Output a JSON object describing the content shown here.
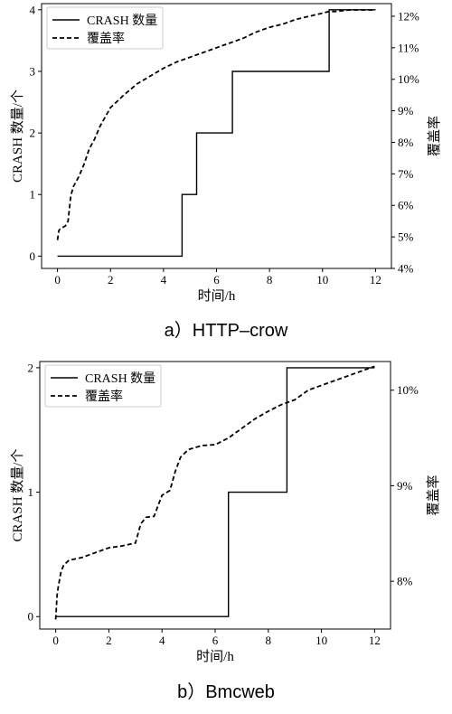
{
  "chart_data": [
    {
      "type": "line",
      "caption": "a）HTTP–crow",
      "xlabel": "时间/h",
      "ylabel": "CRASH 数量/个",
      "ylabel_right": "覆盖率",
      "xlim": [
        -0.6,
        12.6
      ],
      "ylim": [
        -0.2,
        4.1
      ],
      "ylim_right": [
        4.0,
        12.4
      ],
      "xticks": [
        0,
        2,
        4,
        6,
        8,
        10,
        12
      ],
      "yticks": [
        0,
        1,
        2,
        3,
        4
      ],
      "yticks_right": [
        4,
        5,
        6,
        7,
        8,
        9,
        10,
        11,
        12
      ],
      "yticks_right_labels": [
        "4%",
        "5%",
        "6%",
        "7%",
        "8%",
        "9%",
        "10%",
        "11%",
        "12%"
      ],
      "legend": {
        "placement": "top-left",
        "entries": [
          "CRASH 数量",
          "覆盖率"
        ]
      },
      "series": [
        {
          "name": "CRASH 数量",
          "axis": "left",
          "style": "solid",
          "x": [
            0,
            4.7,
            4.7,
            5.25,
            5.25,
            6.6,
            6.6,
            10.25,
            10.25,
            12
          ],
          "y": [
            0,
            0,
            1,
            1,
            2,
            2,
            3,
            3,
            4,
            4
          ]
        },
        {
          "name": "覆盖率",
          "axis": "right",
          "style": "dashed",
          "x": [
            0,
            0.05,
            0.1,
            0.3,
            0.4,
            0.5,
            0.6,
            0.8,
            1.0,
            1.2,
            1.4,
            1.6,
            2.0,
            2.5,
            3.0,
            3.5,
            4.0,
            4.5,
            5.0,
            5.5,
            6.0,
            6.5,
            7.0,
            7.5,
            8.0,
            8.5,
            9.0,
            9.5,
            10.0,
            10.25,
            10.5,
            11.0,
            12.0
          ],
          "y": [
            4.9,
            5.2,
            5.25,
            5.35,
            5.5,
            6.3,
            6.6,
            6.9,
            7.3,
            7.8,
            8.1,
            8.5,
            9.1,
            9.5,
            9.85,
            10.1,
            10.35,
            10.55,
            10.7,
            10.85,
            11.0,
            11.15,
            11.3,
            11.5,
            11.65,
            11.75,
            11.9,
            12.0,
            12.1,
            12.15,
            12.15,
            12.2,
            12.2
          ]
        }
      ]
    },
    {
      "type": "line",
      "caption": "b）Bmcweb",
      "xlabel": "时间/h",
      "ylabel": "CRASH 数量/个",
      "ylabel_right": "覆盖率",
      "xlim": [
        -0.6,
        12.6
      ],
      "ylim": [
        -0.1,
        2.05
      ],
      "ylim_right": [
        7.5,
        10.3
      ],
      "xticks": [
        0,
        2,
        4,
        6,
        8,
        10,
        12
      ],
      "yticks": [
        0,
        1,
        2
      ],
      "yticks_right": [
        8,
        9,
        10
      ],
      "yticks_right_labels": [
        "8%",
        "9%",
        "10%"
      ],
      "legend": {
        "placement": "top-left",
        "entries": [
          "CRASH 数量",
          "覆盖率"
        ]
      },
      "series": [
        {
          "name": "CRASH 数量",
          "axis": "left",
          "style": "solid",
          "x": [
            0,
            6.5,
            6.5,
            8.7,
            8.7,
            12
          ],
          "y": [
            0,
            0,
            1,
            1,
            2,
            2
          ]
        },
        {
          "name": "覆盖率",
          "axis": "right",
          "style": "dashed",
          "x": [
            0,
            0.05,
            0.1,
            0.2,
            0.3,
            0.5,
            1.0,
            1.5,
            2.0,
            2.5,
            3.0,
            3.2,
            3.4,
            3.7,
            4.0,
            4.3,
            4.5,
            4.7,
            5.0,
            5.5,
            6.0,
            6.5,
            7.0,
            7.5,
            8.0,
            8.5,
            9.0,
            9.5,
            10.0,
            10.5,
            11.0,
            11.5,
            12.0
          ],
          "y": [
            7.6,
            7.85,
            7.95,
            8.1,
            8.17,
            8.22,
            8.25,
            8.3,
            8.35,
            8.37,
            8.4,
            8.6,
            8.67,
            8.68,
            8.9,
            8.95,
            9.15,
            9.3,
            9.38,
            9.42,
            9.43,
            9.5,
            9.6,
            9.7,
            9.78,
            9.85,
            9.9,
            10.0,
            10.05,
            10.1,
            10.15,
            10.2,
            10.25
          ]
        }
      ]
    }
  ]
}
